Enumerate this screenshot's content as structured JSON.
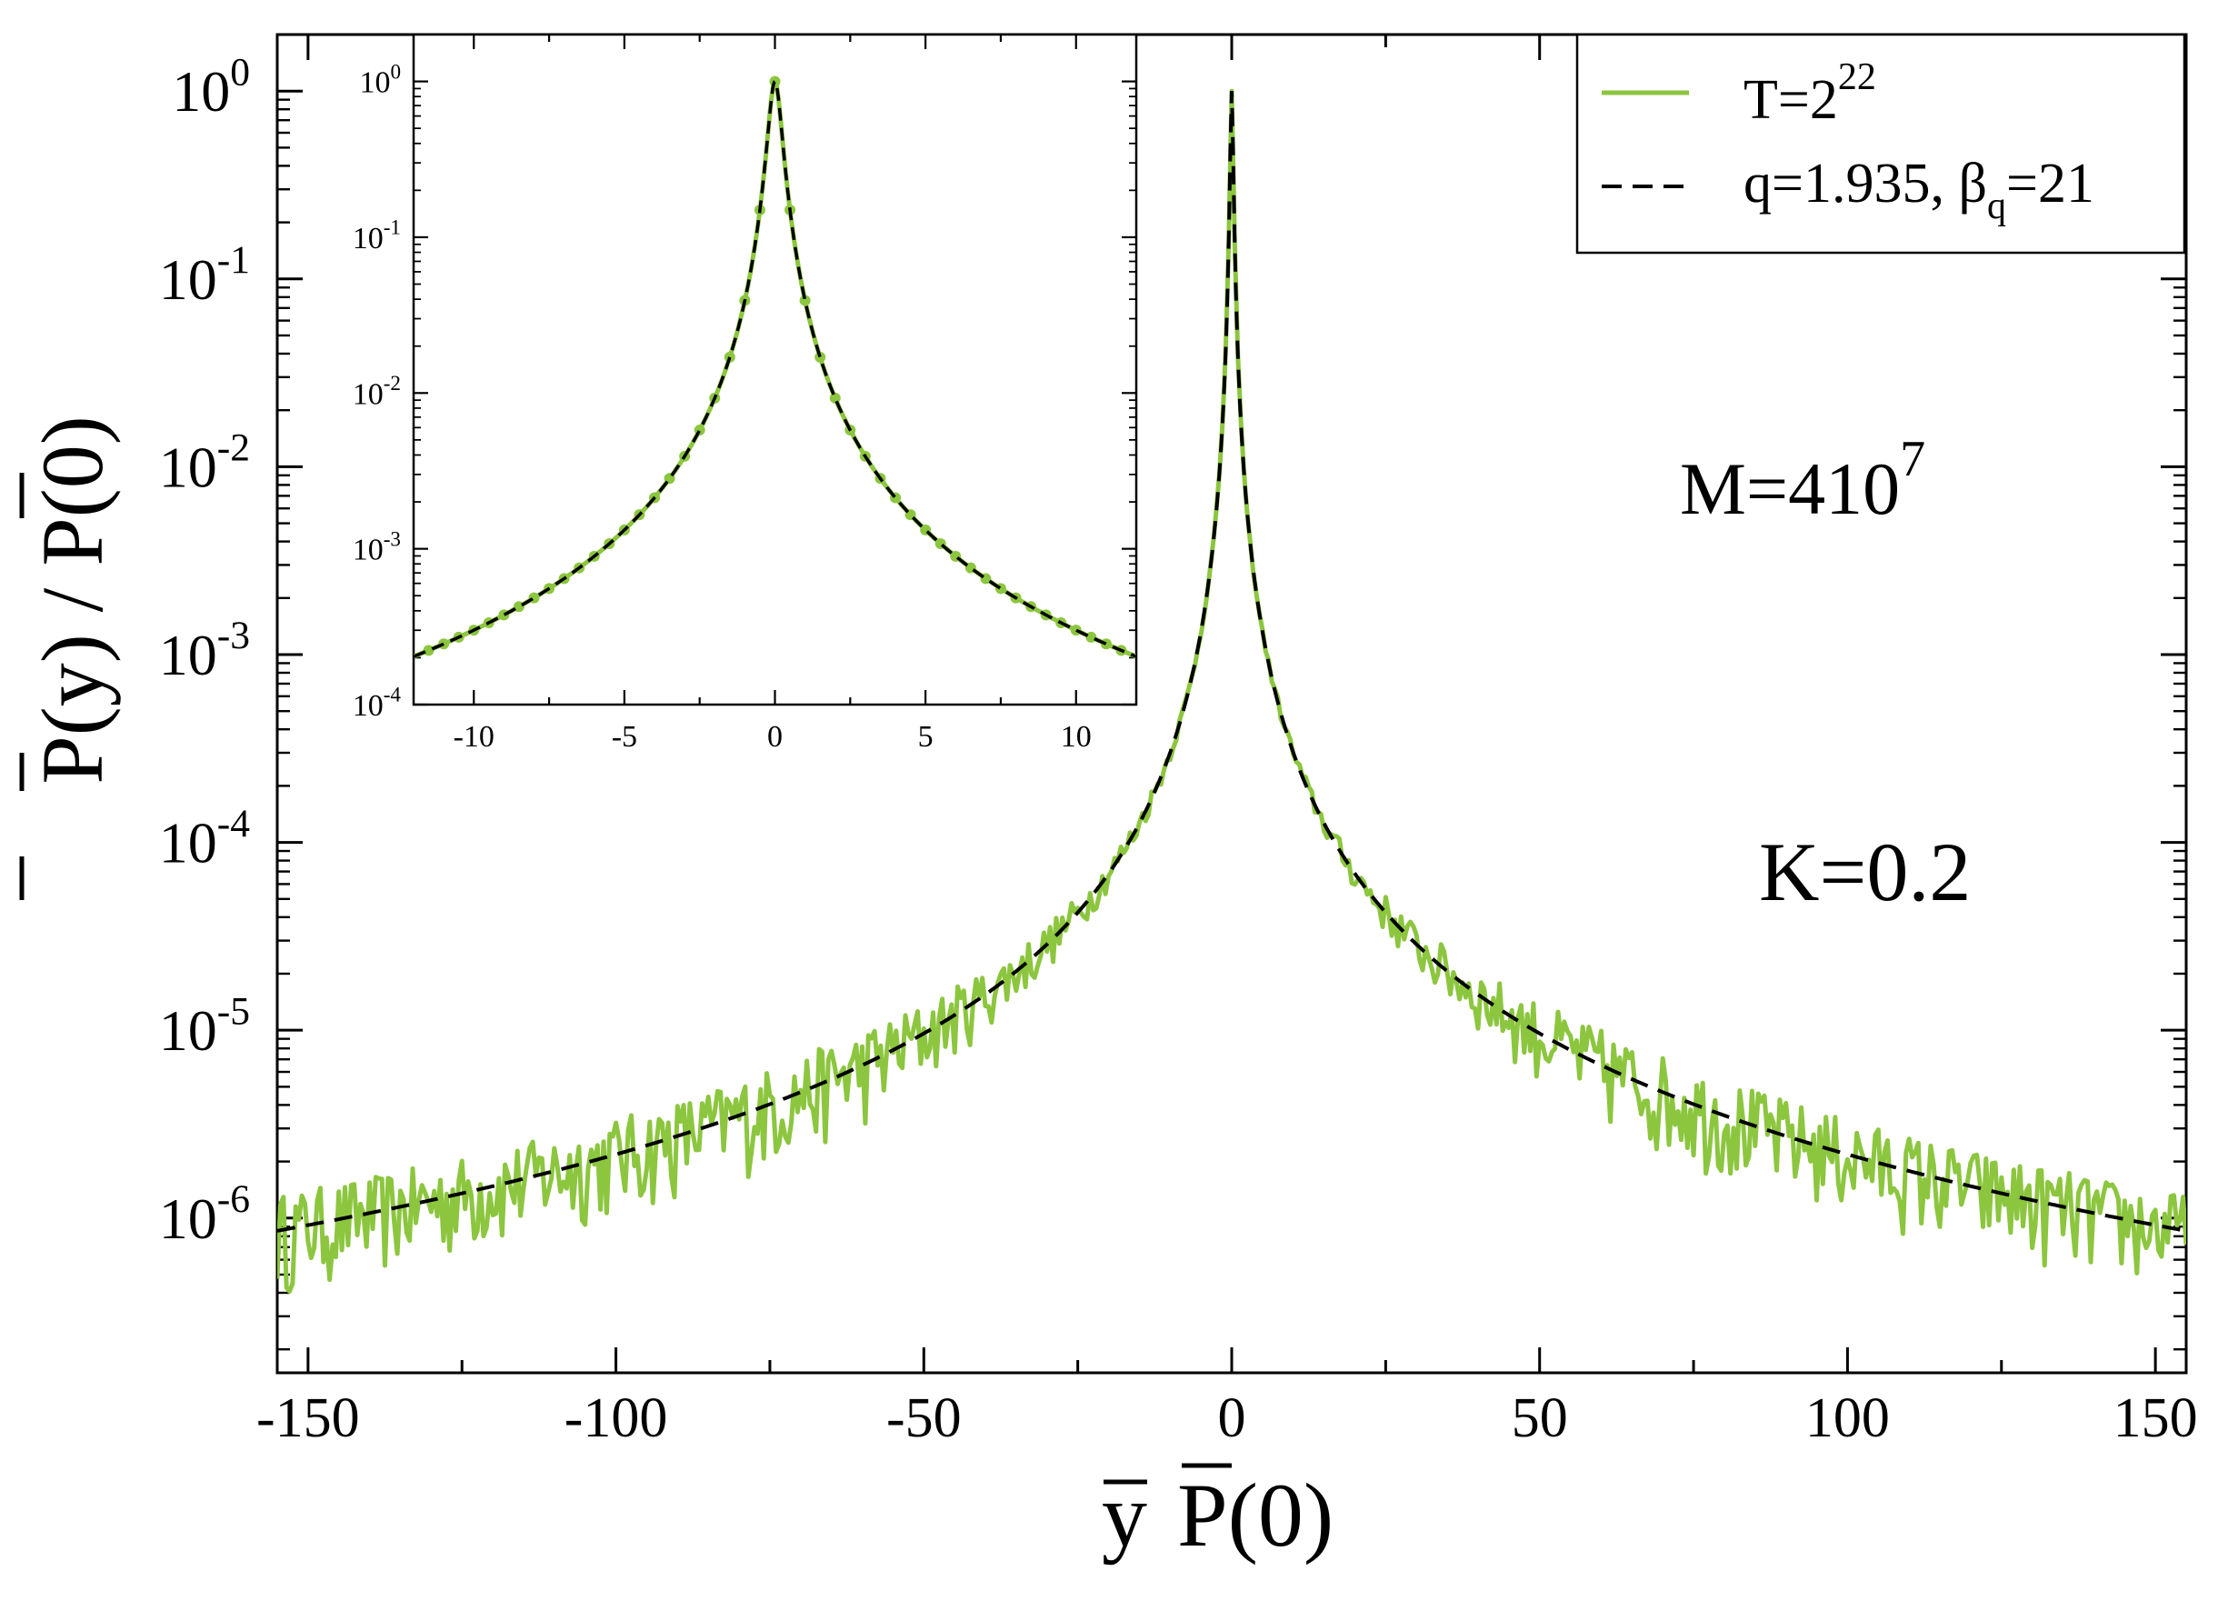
{
  "chart_data": [
    {
      "type": "line",
      "id": "main",
      "xlabel": "y P(0)",
      "ylabel": "P(y) / P(0)",
      "xlim": [
        -155,
        155
      ],
      "ylim": [
        1.5e-07,
        2
      ],
      "yscale": "log",
      "xticks": [
        -150,
        -100,
        -50,
        0,
        50,
        100,
        150
      ],
      "xtick_labels": [
        "-150",
        "-100",
        "-50",
        "0",
        "50",
        "100",
        "150"
      ],
      "yticks": [
        {
          "value": 1,
          "base": "10",
          "exp": "0"
        },
        {
          "value": 0.1,
          "base": "10",
          "exp": "-1"
        },
        {
          "value": 0.01,
          "base": "10",
          "exp": "-2"
        },
        {
          "value": 0.001,
          "base": "10",
          "exp": "-3"
        },
        {
          "value": 0.0001,
          "base": "10",
          "exp": "-4"
        },
        {
          "value": 1e-05,
          "base": "10",
          "exp": "-5"
        },
        {
          "value": 1e-06,
          "base": "10",
          "exp": "-6"
        }
      ],
      "q": 1.935,
      "beta_q": 21,
      "series": [
        {
          "name": "T=2^22",
          "style": "solid",
          "color": "#8cc63f",
          "kind": "simulation"
        },
        {
          "name": "q=1.935, βq=21",
          "style": "dashed",
          "color": "#000000",
          "kind": "q-gaussian fit"
        }
      ],
      "annotations": [
        {
          "text": "M=4 10",
          "sup": "7"
        },
        {
          "text": "K=0.2"
        }
      ]
    },
    {
      "type": "line",
      "id": "inset",
      "xlim": [
        -12,
        12
      ],
      "ylim": [
        0.0001,
        2
      ],
      "yscale": "log",
      "xticks": [
        -10,
        -5,
        0,
        5,
        10
      ],
      "xtick_labels": [
        "-10",
        "-5",
        "0",
        "5",
        "10"
      ],
      "yticks": [
        {
          "value": 1,
          "base": "10",
          "exp": "0"
        },
        {
          "value": 0.1,
          "base": "10",
          "exp": "-1"
        },
        {
          "value": 0.01,
          "base": "10",
          "exp": "-2"
        },
        {
          "value": 0.001,
          "base": "10",
          "exp": "-3"
        },
        {
          "value": 0.0001,
          "base": "10",
          "exp": "-4"
        }
      ],
      "q": 1.935,
      "beta_q": 21
    }
  ],
  "legend": {
    "entry1": {
      "base": "T=2",
      "sup": "22",
      "color": "#8cc63f"
    },
    "entry2": {
      "base": "q=1.935, β",
      "sub": "q",
      "tail": "=21",
      "color": "#000000"
    }
  },
  "annotations": {
    "M": {
      "base": "M=410",
      "sup": "7"
    },
    "K": {
      "text": "K=0.2"
    }
  },
  "axis_labels": {
    "x_y": "y",
    "x_P": "P(0)",
    "y_text": "P(y) / P(0)"
  }
}
